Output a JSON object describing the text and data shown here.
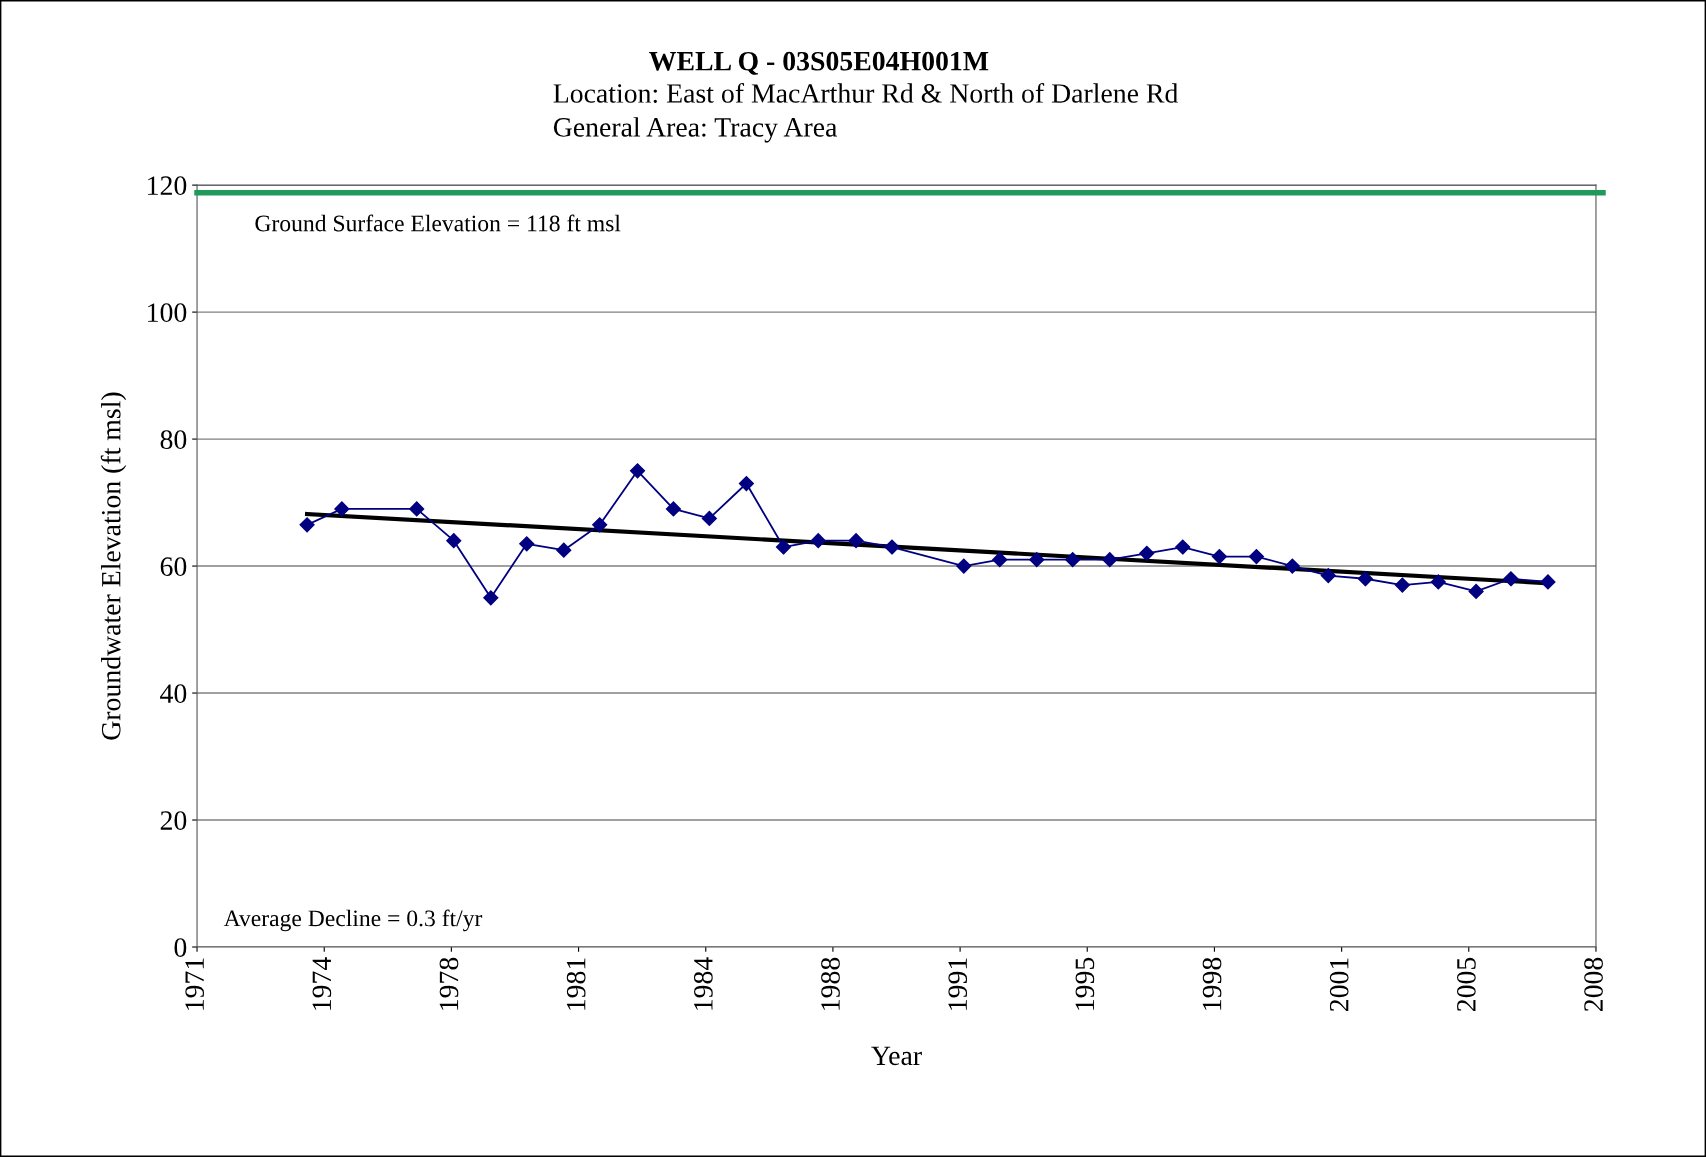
{
  "chart_data": {
    "type": "line",
    "title": "WELL Q - 03S05E04H001M",
    "subtitle": "Location: East of MacArthur Rd & North of Darlene Rd\nGeneral Area: Tracy Area",
    "xlabel": "Year",
    "ylabel": "Groundwater Elevation (ft msl)",
    "series": [
      {
        "color": "#000080",
        "marker": "diamond",
        "x": [
          1973.91,
          1974.83,
          1976.81,
          1977.79,
          1978.77,
          1979.72,
          1980.7,
          1981.65,
          1982.65,
          1983.6,
          1984.55,
          1985.53,
          1986.51,
          1987.43,
          1988.43,
          1989.38,
          1991.28,
          1992.23,
          1993.21,
          1994.16,
          1995.14,
          1996.12,
          1997.07,
          1998.04,
          1999.02,
          1999.97,
          2000.92,
          2001.9,
          2002.88,
          2003.83,
          2004.83,
          2005.75,
          2006.73
        ],
        "values": [
          66.5,
          69,
          69,
          64,
          55,
          63.5,
          62.5,
          66.5,
          75,
          69,
          67.5,
          73,
          63,
          64,
          64,
          63,
          60,
          61,
          61,
          61,
          61,
          62,
          63,
          61.5,
          61.5,
          60,
          58.5,
          58,
          57,
          57.5,
          56,
          58,
          57.5
        ]
      },
      {
        "color": "#000000",
        "marker": "none",
        "x": [
          1973.91,
          2006.73
        ],
        "values": [
          68.2,
          57.3
        ]
      }
    ],
    "ref_lines": [
      {
        "axis": "y",
        "value": 118.8,
        "color": "#1f9a5a"
      }
    ],
    "annotations": [
      "Ground Surface Elevation = 118 ft msl",
      "Average Decline = 0.3 ft/yr"
    ],
    "xlim": [
      1971,
      2008
    ],
    "ylim": [
      0,
      120
    ],
    "xticks": [
      {
        "value": 1971,
        "label": "1971"
      },
      {
        "value": 1974.364,
        "label": "1974"
      },
      {
        "value": 1977.727,
        "label": "1978"
      },
      {
        "value": 1981.091,
        "label": "1981"
      },
      {
        "value": 1984.455,
        "label": "1984"
      },
      {
        "value": 1987.818,
        "label": "1988"
      },
      {
        "value": 1991.182,
        "label": "1991"
      },
      {
        "value": 1994.545,
        "label": "1995"
      },
      {
        "value": 1997.909,
        "label": "1998"
      },
      {
        "value": 2001.273,
        "label": "2001"
      },
      {
        "value": 2004.636,
        "label": "2005"
      },
      {
        "value": 2008,
        "label": "2008"
      }
    ],
    "yticks": [
      0,
      20,
      40,
      60,
      80,
      100,
      120
    ],
    "grid": "y",
    "legend": false
  }
}
